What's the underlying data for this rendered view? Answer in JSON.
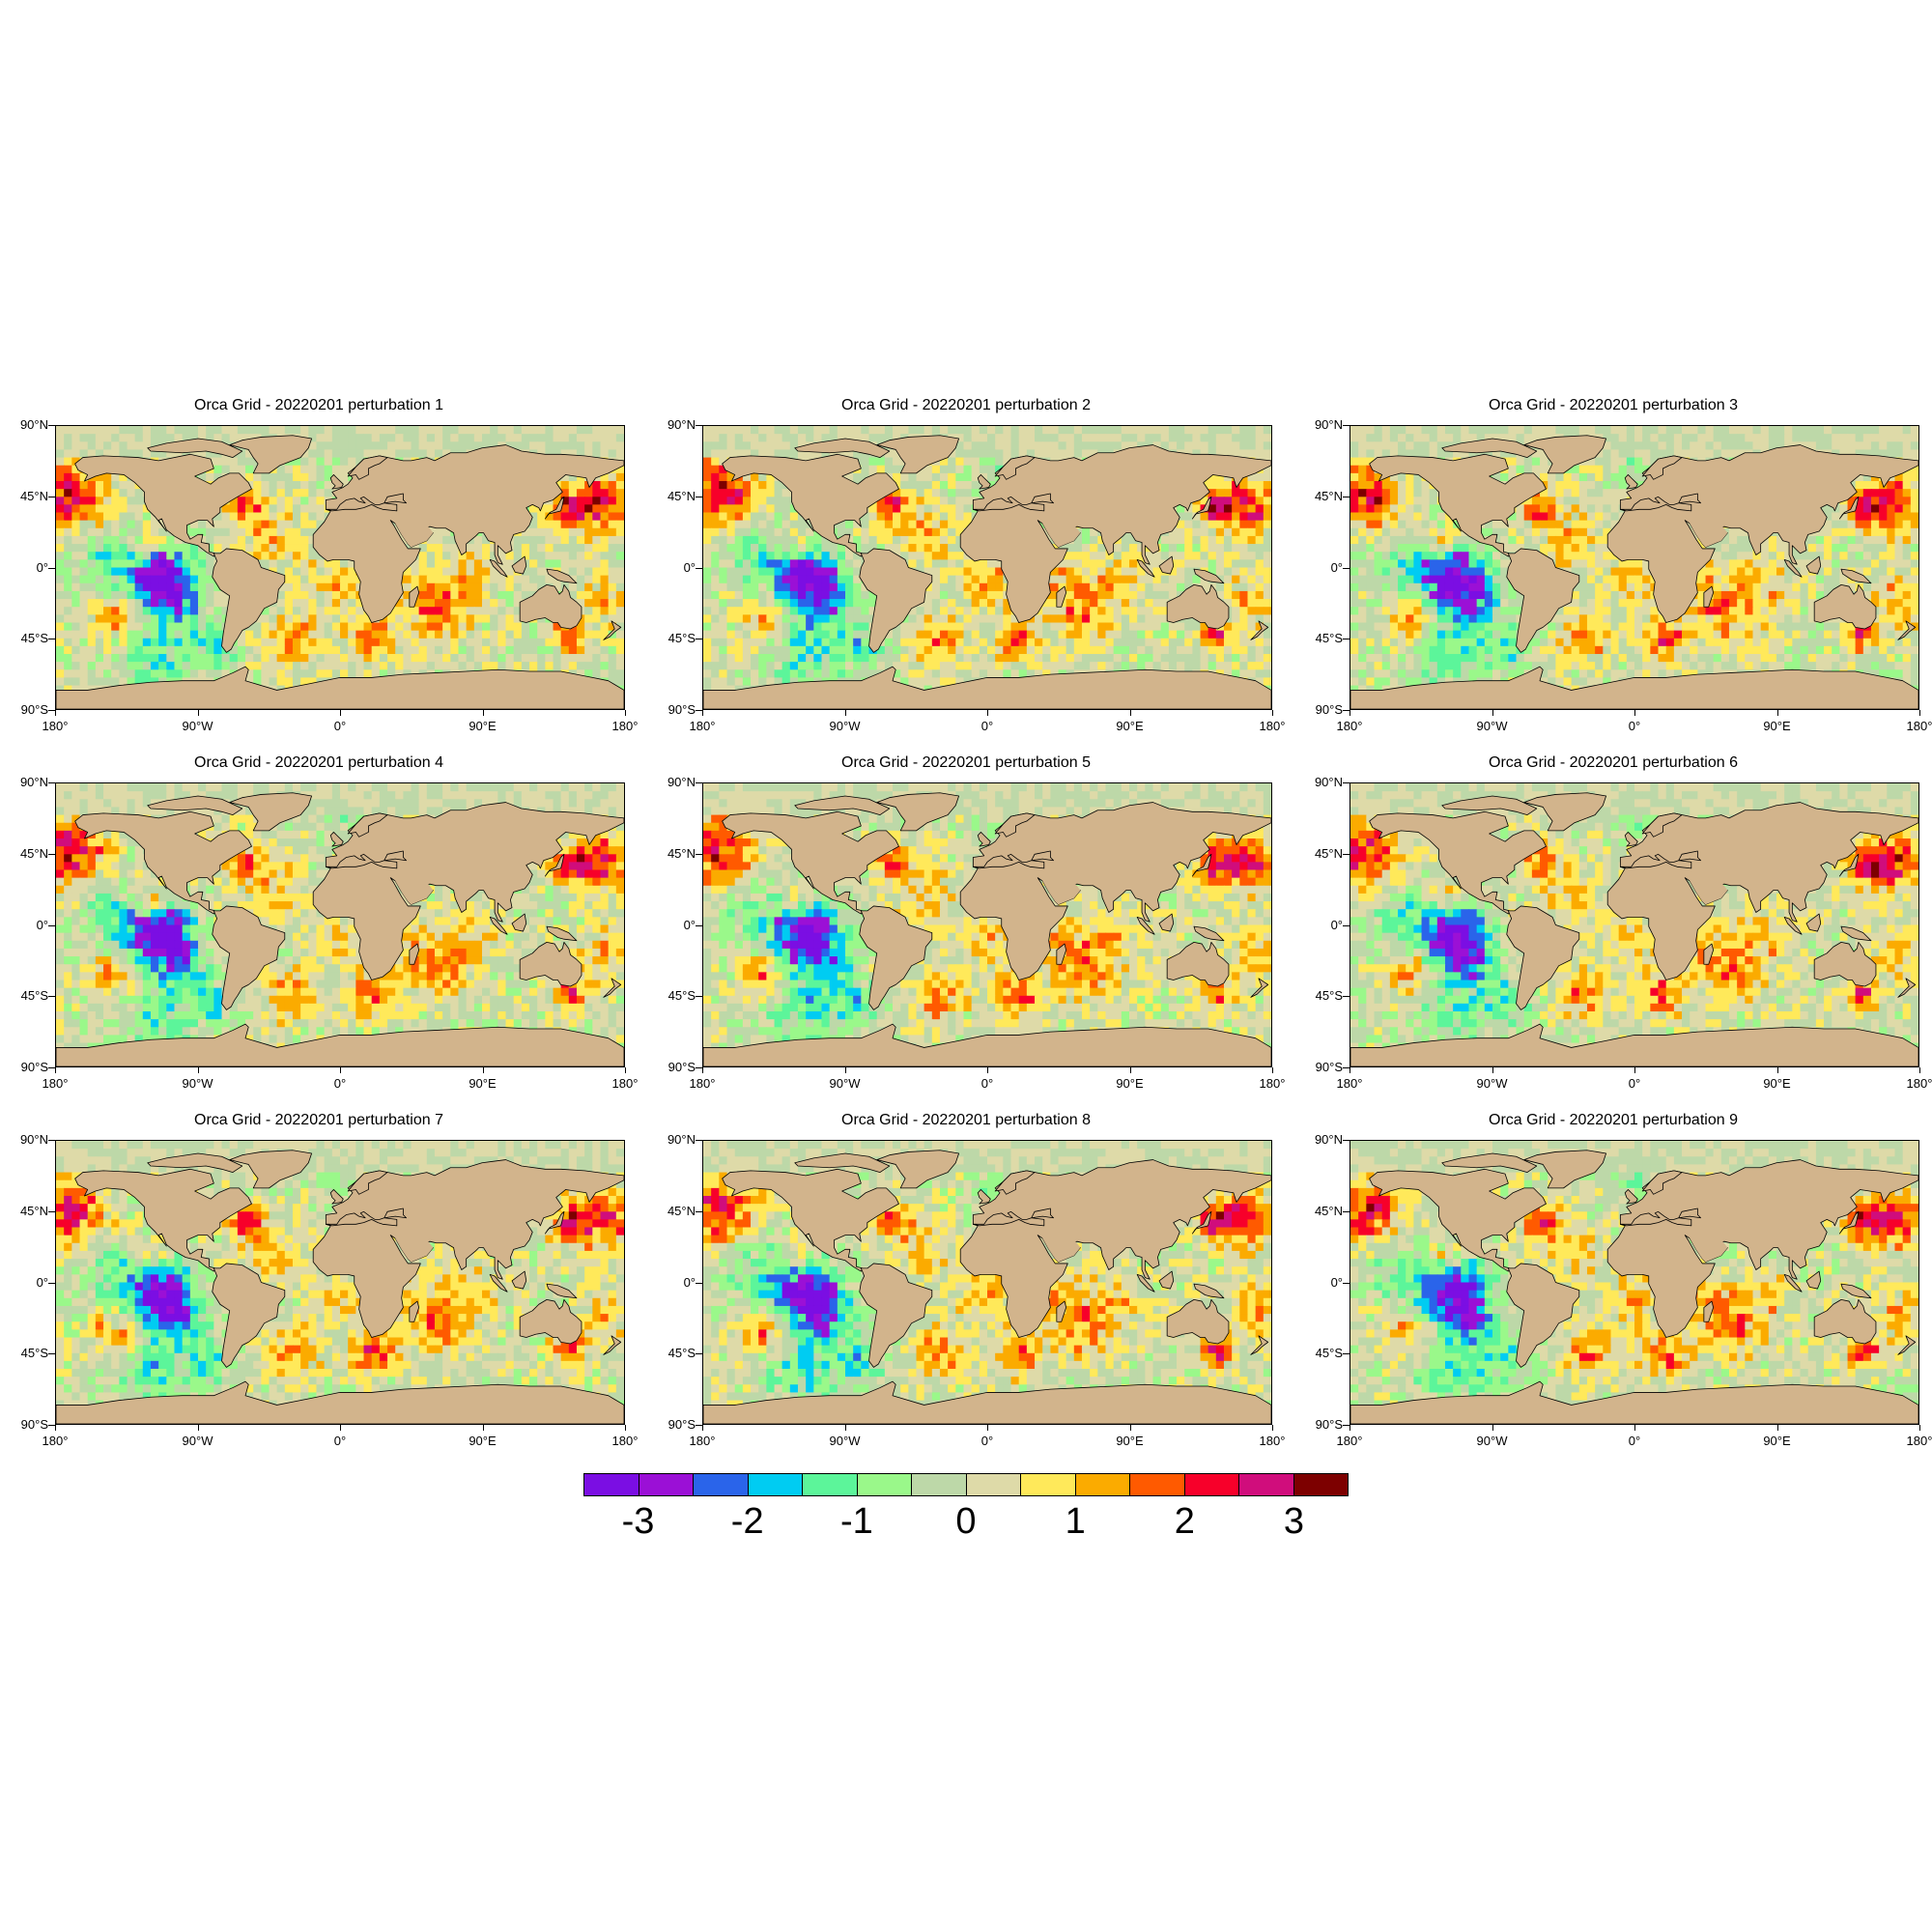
{
  "chart_data": {
    "type": "heatmap",
    "panels": [
      {
        "title": "Orca Grid - 20220201 perturbation 1"
      },
      {
        "title": "Orca Grid - 20220201 perturbation 2"
      },
      {
        "title": "Orca Grid - 20220201 perturbation 3"
      },
      {
        "title": "Orca Grid - 20220201 perturbation 4"
      },
      {
        "title": "Orca Grid - 20220201 perturbation 5"
      },
      {
        "title": "Orca Grid - 20220201 perturbation 6"
      },
      {
        "title": "Orca Grid - 20220201 perturbation 7"
      },
      {
        "title": "Orca Grid - 20220201 perturbation 8"
      },
      {
        "title": "Orca Grid - 20220201 perturbation 9"
      }
    ],
    "lat_ticks": [
      "90°N",
      "45°N",
      "0°",
      "45°S",
      "90°S"
    ],
    "lon_ticks": [
      "180°",
      "90°W",
      "0°",
      "90°E",
      "180°"
    ],
    "xlim": [
      -180,
      180
    ],
    "ylim": [
      -90,
      90
    ],
    "colorbar": {
      "levels": 14,
      "colors": [
        "#7b0ee3",
        "#9b10d6",
        "#2a64ea",
        "#00ccf2",
        "#5cf59a",
        "#9af88a",
        "#bdd8a8",
        "#dedaa8",
        "#ffe95a",
        "#fbab00",
        "#ff5a00",
        "#f7002a",
        "#d00d7c",
        "#7d0000"
      ],
      "labels": [
        "-3",
        "-2",
        "-1",
        "0",
        "1",
        "2",
        "3"
      ],
      "range": [
        -3.5,
        3.5
      ]
    },
    "land_color": "#d2b48c",
    "ocean_base_color": "#d8d7a8"
  }
}
